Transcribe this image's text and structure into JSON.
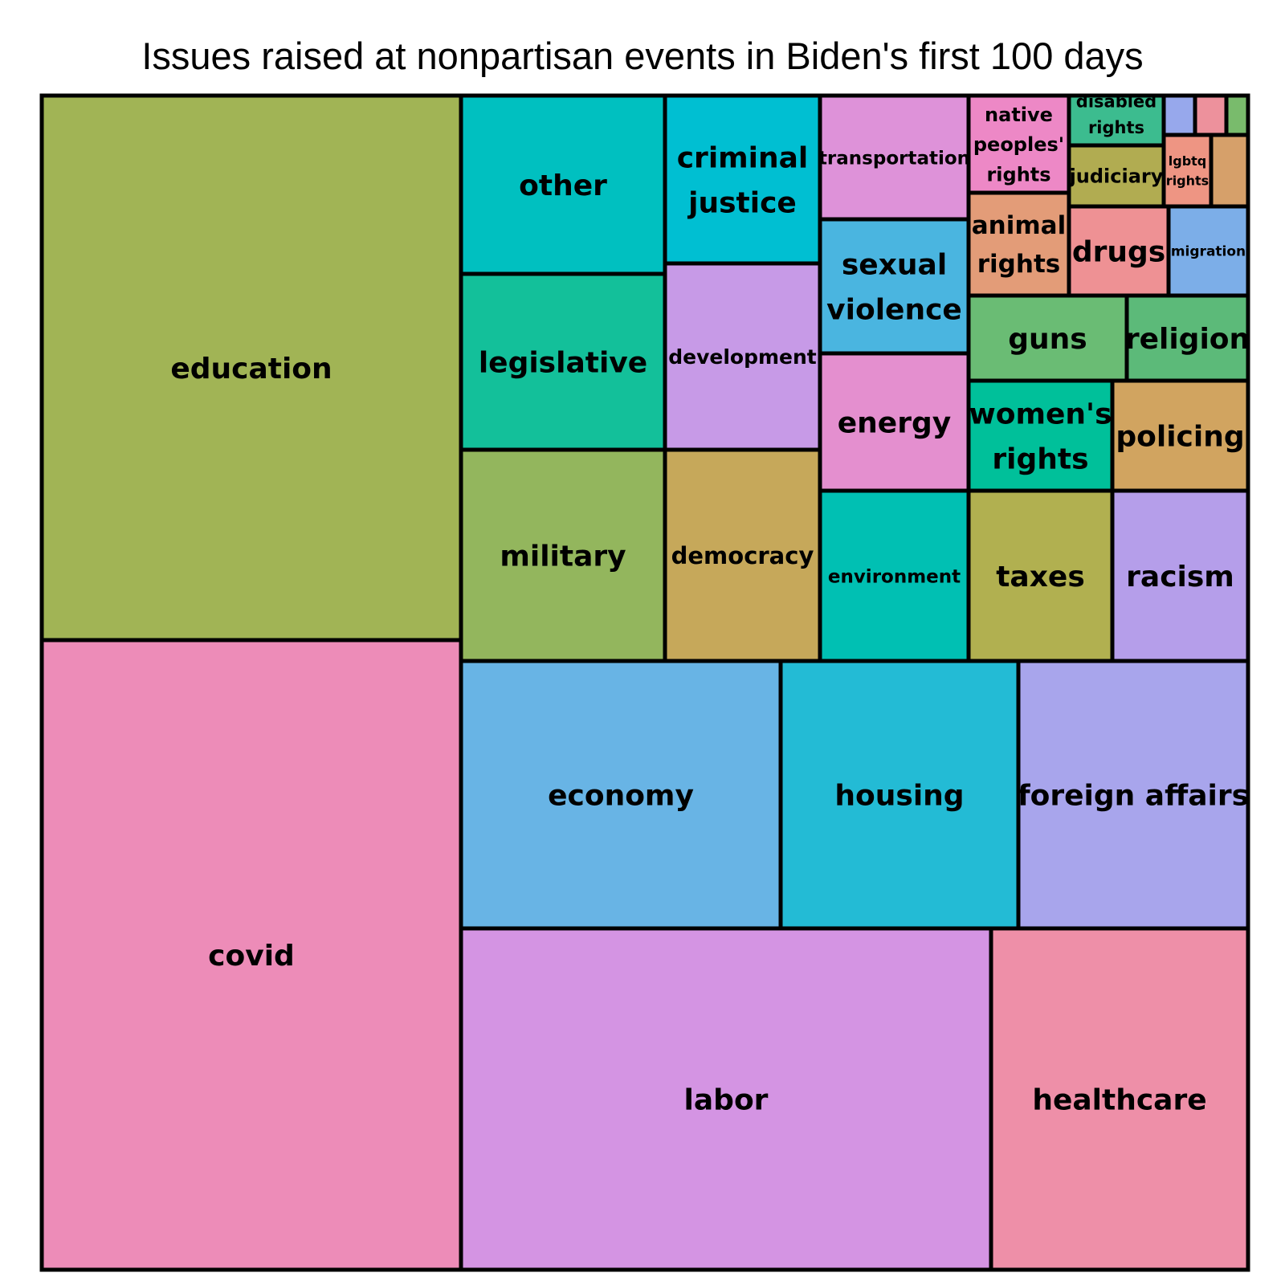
{
  "chart_data": {
    "type": "treemap",
    "title": "Issues raised at nonpartisan events in Biden's first 100 days",
    "items": [
      {
        "label": "education",
        "lines": [
          "education"
        ],
        "value": 3335,
        "color": "#a1b455"
      },
      {
        "label": "covid",
        "lines": [
          "covid"
        ],
        "value": 3875,
        "color": "#ed8cb8"
      },
      {
        "label": "other",
        "lines": [
          "other"
        ],
        "value": 520,
        "color": "#00c0c0"
      },
      {
        "label": "legislative",
        "lines": [
          "legislative"
        ],
        "value": 525,
        "color": "#13c09a"
      },
      {
        "label": "military",
        "lines": [
          "military"
        ],
        "value": 623,
        "color": "#93b65d"
      },
      {
        "label": "criminal justice",
        "lines": [
          "criminal",
          "justice"
        ],
        "value": 373,
        "color": "#00bfd2"
      },
      {
        "label": "development",
        "lines": [
          "development"
        ],
        "value": 409,
        "color": "#c79ae7"
      },
      {
        "label": "democracy",
        "lines": [
          "democracy"
        ],
        "value": 470,
        "color": "#c6a85a"
      },
      {
        "label": "transportation",
        "lines": [
          "transportation"
        ],
        "value": 258,
        "color": "#de92d9"
      },
      {
        "label": "sexual violence",
        "lines": [
          "sexual",
          "violence"
        ],
        "value": 280,
        "color": "#4ab5e0"
      },
      {
        "label": "energy",
        "lines": [
          "energy"
        ],
        "value": 290,
        "color": "#e48fcf"
      },
      {
        "label": "environment",
        "lines": [
          "environment"
        ],
        "value": 352,
        "color": "#00c0b3"
      },
      {
        "label": "native peoples' rights",
        "lines": [
          "native",
          "peoples'",
          "rights"
        ],
        "value": 107,
        "color": "#ed88c6"
      },
      {
        "label": "animal rights",
        "lines": [
          "animal",
          "rights"
        ],
        "value": 107,
        "color": "#e39c78"
      },
      {
        "label": "disabled rights",
        "lines": [
          "disabled",
          "rights"
        ],
        "value": 56,
        "color": "#3cbc8f"
      },
      {
        "label": "judiciary",
        "lines": [
          "judiciary"
        ],
        "value": 69,
        "color": "#b1ac51"
      },
      {
        "label": "lgbtq rights",
        "lines": [
          "lgbtq",
          "rights"
        ],
        "value": 46,
        "color": "#ee9583"
      },
      {
        "label": "drugs",
        "lines": [
          "drugs"
        ],
        "value": 104,
        "color": "#ee9194"
      },
      {
        "label": "migration",
        "lines": [
          "migration"
        ],
        "value": 82,
        "color": "#7caee8"
      },
      {
        "label": "guns",
        "lines": [
          "guns"
        ],
        "value": 160,
        "color": "#6abc74"
      },
      {
        "label": "religion",
        "lines": [
          "religion"
        ],
        "value": 125,
        "color": "#5cba79"
      },
      {
        "label": "women's rights",
        "lines": [
          "women's",
          "rights"
        ],
        "value": 185,
        "color": "#00c09a"
      },
      {
        "label": "policing",
        "lines": [
          "policing"
        ],
        "value": 179,
        "color": "#d1a460"
      },
      {
        "label": "taxes",
        "lines": [
          "taxes"
        ],
        "value": 287,
        "color": "#b1b050"
      },
      {
        "label": "racism",
        "lines": [
          "racism"
        ],
        "value": 270,
        "color": "#b59eea"
      },
      {
        "label": "economy",
        "lines": [
          "economy"
        ],
        "value": 1000,
        "color": "#68b4e5"
      },
      {
        "label": "housing",
        "lines": [
          "housing"
        ],
        "value": 737,
        "color": "#23bbd5"
      },
      {
        "label": "foreign affairs",
        "lines": [
          "foreign affairs"
        ],
        "value": 715,
        "color": "#a8a5ec"
      },
      {
        "label": "labor",
        "lines": [
          "labor"
        ],
        "value": 2265,
        "color": "#d494e3"
      },
      {
        "label": "healthcare",
        "lines": [
          "healthcare"
        ],
        "value": 1101,
        "color": "#ee8fa8"
      },
      {
        "label": "",
        "lines": [],
        "value": 15,
        "color": "#97a8ec"
      },
      {
        "label": "",
        "lines": [],
        "value": 15,
        "color": "#ed919c"
      },
      {
        "label": "",
        "lines": [],
        "value": 10,
        "color": "#79bb6c"
      },
      {
        "label": "",
        "lines": [],
        "value": 21,
        "color": "#d6a06a"
      }
    ]
  }
}
